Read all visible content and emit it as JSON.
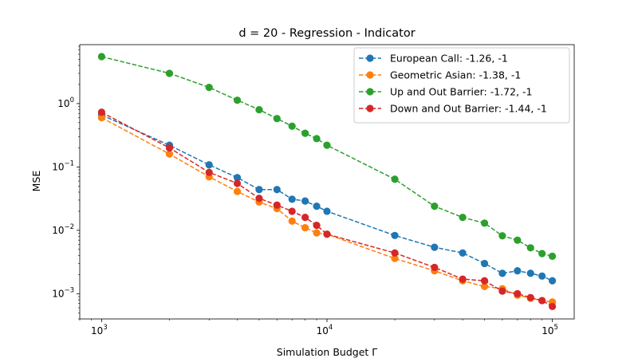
{
  "chart_data": {
    "type": "line",
    "title": "d = 20 - Regression - Indicator",
    "xlabel": "Simulation Budget Γ",
    "ylabel": "MSE",
    "xscale": "log",
    "yscale": "log",
    "xlim": [
      800,
      125000
    ],
    "ylim": [
      0.0004,
      8.5
    ],
    "x_ticks": [
      {
        "value": 1000,
        "base": "10",
        "exp": "3"
      },
      {
        "value": 10000,
        "base": "10",
        "exp": "4"
      },
      {
        "value": 100000,
        "base": "10",
        "exp": "5"
      }
    ],
    "y_ticks": [
      {
        "value": 0.001,
        "base": "10",
        "exp": "−3"
      },
      {
        "value": 0.01,
        "base": "10",
        "exp": "−2"
      },
      {
        "value": 0.1,
        "base": "10",
        "exp": "−1"
      },
      {
        "value": 1,
        "base": "10",
        "exp": "0"
      }
    ],
    "grid": false,
    "legend_position": "top-right",
    "x": [
      1000,
      2000,
      3000,
      4000,
      5000,
      6000,
      7000,
      8000,
      9000,
      10000,
      20000,
      30000,
      40000,
      50000,
      60000,
      70000,
      80000,
      90000,
      100000
    ],
    "series": [
      {
        "name": "European Call: -1.26, -1",
        "color": "#1f77b4",
        "values": [
          0.66,
          0.22,
          0.108,
          0.068,
          0.044,
          0.044,
          0.031,
          0.029,
          0.024,
          0.02,
          0.0083,
          0.0054,
          0.0044,
          0.003,
          0.0021,
          0.0023,
          0.0021,
          0.0019,
          0.0016
        ]
      },
      {
        "name": "Geometric Asian: -1.38, -1",
        "color": "#ff7f0e",
        "values": [
          0.6,
          0.16,
          0.07,
          0.041,
          0.028,
          0.022,
          0.014,
          0.011,
          0.0091,
          0.0087,
          0.0036,
          0.0023,
          0.0016,
          0.0013,
          0.0012,
          0.00095,
          0.00085,
          0.00078,
          0.00074
        ]
      },
      {
        "name": "Up and Out Barrier: -1.72, -1",
        "color": "#2ca02c",
        "values": [
          5.5,
          3.0,
          1.8,
          1.13,
          0.8,
          0.58,
          0.44,
          0.34,
          0.28,
          0.22,
          0.064,
          0.024,
          0.016,
          0.013,
          0.0082,
          0.007,
          0.0053,
          0.0043,
          0.0039
        ]
      },
      {
        "name": "Down and Out Barrier: -1.44, -1",
        "color": "#d62728",
        "values": [
          0.73,
          0.2,
          0.082,
          0.055,
          0.032,
          0.025,
          0.02,
          0.016,
          0.012,
          0.0087,
          0.0044,
          0.0026,
          0.0017,
          0.0016,
          0.0011,
          0.001,
          0.00087,
          0.00078,
          0.00063
        ]
      }
    ]
  }
}
